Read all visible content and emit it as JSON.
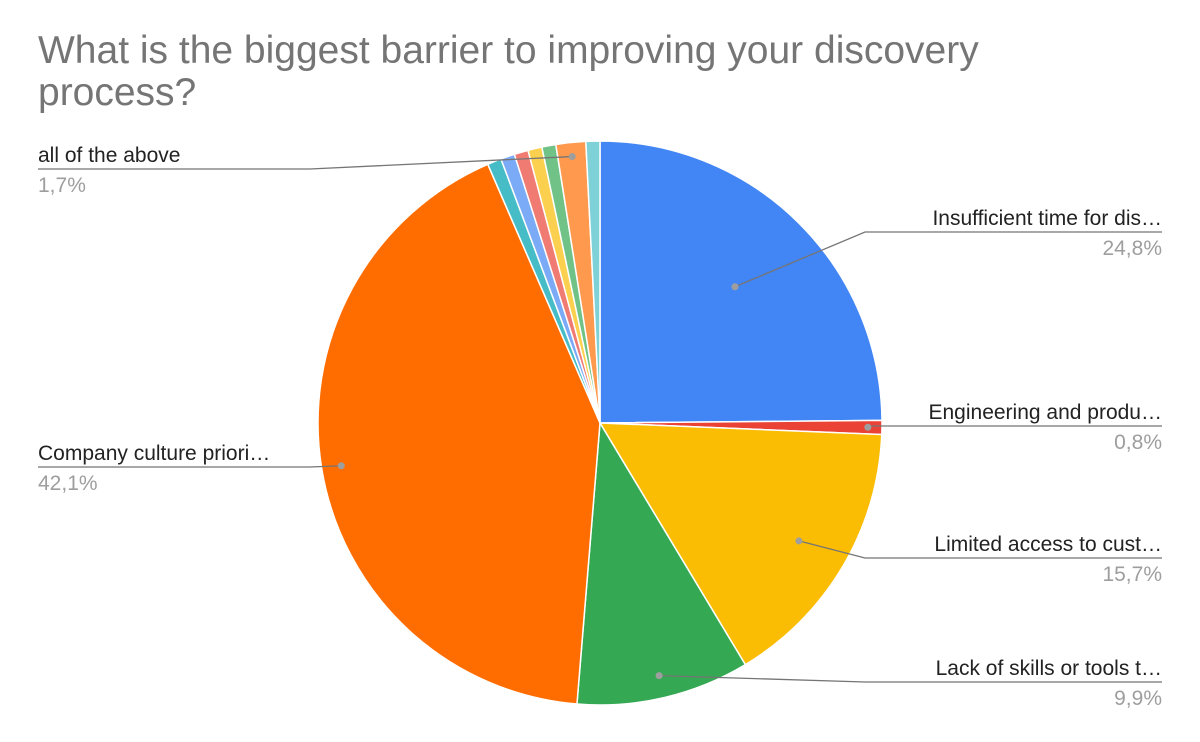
{
  "chart_data": {
    "type": "pie",
    "title": "What is the biggest barrier to improving your discovery process?",
    "slices": [
      {
        "label": "Insufficient time for dis…",
        "value": 24.8,
        "pct_label": "24,8%",
        "color": "#4285f4"
      },
      {
        "label": "Engineering and produ…",
        "value": 0.8,
        "pct_label": "0,8%",
        "color": "#ea4335"
      },
      {
        "label": "Limited access to cust…",
        "value": 15.7,
        "pct_label": "15,7%",
        "color": "#fbbc04"
      },
      {
        "label": "Lack of skills or tools t…",
        "value": 9.9,
        "pct_label": "9,9%",
        "color": "#34a853"
      },
      {
        "label": "Company culture priori…",
        "value": 42.1,
        "pct_label": "42,1%",
        "color": "#ff6d01"
      },
      {
        "label": "",
        "value": 0.8,
        "pct_label": "",
        "color": "#46bdc6"
      },
      {
        "label": "",
        "value": 0.8,
        "pct_label": "",
        "color": "#7baaf7"
      },
      {
        "label": "",
        "value": 0.8,
        "pct_label": "",
        "color": "#f07b72"
      },
      {
        "label": "",
        "value": 0.8,
        "pct_label": "",
        "color": "#fcd04f"
      },
      {
        "label": "",
        "value": 0.8,
        "pct_label": "",
        "color": "#71c287"
      },
      {
        "label": "all of the above",
        "value": 1.7,
        "pct_label": "1,7%",
        "color": "#ff994d"
      },
      {
        "label": "",
        "value": 0.8,
        "pct_label": "",
        "color": "#7ed1d7"
      }
    ],
    "legend": "none"
  }
}
